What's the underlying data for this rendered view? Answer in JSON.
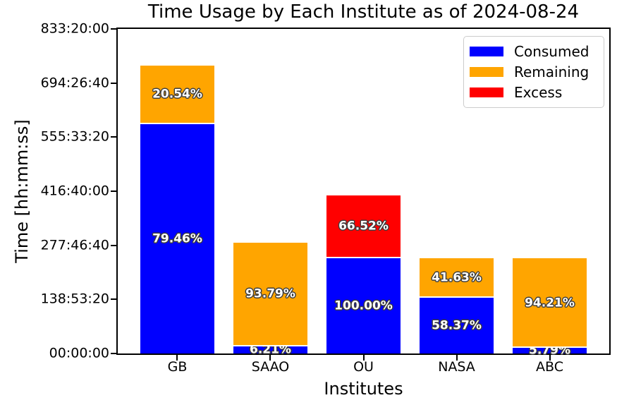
{
  "title": "Time Usage by Each Institute as of 2024-08-24",
  "xlabel": "Institutes",
  "ylabel": "Time [hh:mm:ss]",
  "legend": {
    "position": "upper right",
    "items": [
      {
        "label": "Consumed",
        "color": "#0000ff"
      },
      {
        "label": "Remaining",
        "color": "#ffa500"
      },
      {
        "label": "Excess",
        "color": "#ff0000"
      }
    ]
  },
  "chart_data": {
    "type": "bar",
    "stacked": true,
    "title": "Time Usage by Each Institute as of 2024-08-24",
    "xlabel": "Institutes",
    "ylabel": "Time [hh:mm:ss]",
    "categories": [
      "GB",
      "SAAO",
      "OU",
      "NASA",
      "ABC"
    ],
    "unit": "seconds",
    "ylim": [
      0,
      3000000
    ],
    "grid": false,
    "legend_position": "upper right",
    "yticks": {
      "values": [
        0,
        500000,
        1000000,
        1500000,
        2000000,
        2500000,
        3000000
      ],
      "labels": [
        "00:00:00",
        "138:53:20",
        "277:46:40",
        "416:40:00",
        "555:33:20",
        "694:26:40",
        "833:20:00"
      ]
    },
    "series": [
      {
        "name": "Consumed",
        "color": "#0000ff",
        "values": [
          2116800,
          63700,
          879300,
          513250,
          50900
        ],
        "labels": [
          "79.46%",
          "6.21%",
          "100.00%",
          "58.37%",
          "5.79%"
        ]
      },
      {
        "name": "Remaining",
        "color": "#ffa500",
        "values": [
          547200,
          962300,
          0,
          366050,
          828400
        ],
        "labels": [
          "20.54%",
          "93.79%",
          "",
          "41.63%",
          "94.21%"
        ]
      },
      {
        "name": "Excess",
        "color": "#ff0000",
        "values": [
          0,
          0,
          584900,
          0,
          0
        ],
        "labels": [
          "",
          "",
          "66.52%",
          "",
          ""
        ]
      }
    ]
  }
}
